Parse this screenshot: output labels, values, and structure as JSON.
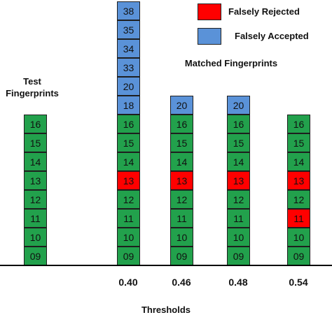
{
  "legend": {
    "rejected_label": "Falsely Rejected",
    "accepted_label": "Falsely Accepted"
  },
  "labels": {
    "test_line1": "Test",
    "test_line2": "Fingerprints",
    "matched": "Matched Fingerprints",
    "thresholds": "Thresholds"
  },
  "colors": {
    "normal": "#22a14c",
    "falsely_rejected": "#ff0000",
    "falsely_accepted": "#5a92d8"
  },
  "columns": [
    {
      "name": "test-fingerprints",
      "threshold": "",
      "cells": [
        {
          "v": "16",
          "s": "normal"
        },
        {
          "v": "15",
          "s": "normal"
        },
        {
          "v": "14",
          "s": "normal"
        },
        {
          "v": "13",
          "s": "normal"
        },
        {
          "v": "12",
          "s": "normal"
        },
        {
          "v": "11",
          "s": "normal"
        },
        {
          "v": "10",
          "s": "normal"
        },
        {
          "v": "09",
          "s": "normal"
        }
      ]
    },
    {
      "name": "threshold-0.40",
      "threshold": "0.40",
      "cells": [
        {
          "v": "38",
          "s": "falsely_accepted"
        },
        {
          "v": "35",
          "s": "falsely_accepted"
        },
        {
          "v": "34",
          "s": "falsely_accepted"
        },
        {
          "v": "33",
          "s": "falsely_accepted"
        },
        {
          "v": "20",
          "s": "falsely_accepted"
        },
        {
          "v": "18",
          "s": "falsely_accepted"
        },
        {
          "v": "16",
          "s": "normal"
        },
        {
          "v": "15",
          "s": "normal"
        },
        {
          "v": "14",
          "s": "normal"
        },
        {
          "v": "13",
          "s": "falsely_rejected"
        },
        {
          "v": "12",
          "s": "normal"
        },
        {
          "v": "11",
          "s": "normal"
        },
        {
          "v": "10",
          "s": "normal"
        },
        {
          "v": "09",
          "s": "normal"
        }
      ]
    },
    {
      "name": "threshold-0.46",
      "threshold": "0.46",
      "cells": [
        {
          "v": "20",
          "s": "falsely_accepted"
        },
        {
          "v": "16",
          "s": "normal"
        },
        {
          "v": "15",
          "s": "normal"
        },
        {
          "v": "14",
          "s": "normal"
        },
        {
          "v": "13",
          "s": "falsely_rejected"
        },
        {
          "v": "12",
          "s": "normal"
        },
        {
          "v": "11",
          "s": "normal"
        },
        {
          "v": "10",
          "s": "normal"
        },
        {
          "v": "09",
          "s": "normal"
        }
      ]
    },
    {
      "name": "threshold-0.48",
      "threshold": "0.48",
      "cells": [
        {
          "v": "20",
          "s": "falsely_accepted"
        },
        {
          "v": "16",
          "s": "normal"
        },
        {
          "v": "15",
          "s": "normal"
        },
        {
          "v": "14",
          "s": "normal"
        },
        {
          "v": "13",
          "s": "falsely_rejected"
        },
        {
          "v": "12",
          "s": "normal"
        },
        {
          "v": "11",
          "s": "normal"
        },
        {
          "v": "10",
          "s": "normal"
        },
        {
          "v": "09",
          "s": "normal"
        }
      ]
    },
    {
      "name": "threshold-0.54",
      "threshold": "0.54",
      "cells": [
        {
          "v": "16",
          "s": "normal"
        },
        {
          "v": "15",
          "s": "normal"
        },
        {
          "v": "14",
          "s": "normal"
        },
        {
          "v": "13",
          "s": "falsely_rejected"
        },
        {
          "v": "12",
          "s": "normal"
        },
        {
          "v": "11",
          "s": "falsely_rejected"
        },
        {
          "v": "10",
          "s": "normal"
        },
        {
          "v": "09",
          "s": "normal"
        }
      ]
    }
  ]
}
